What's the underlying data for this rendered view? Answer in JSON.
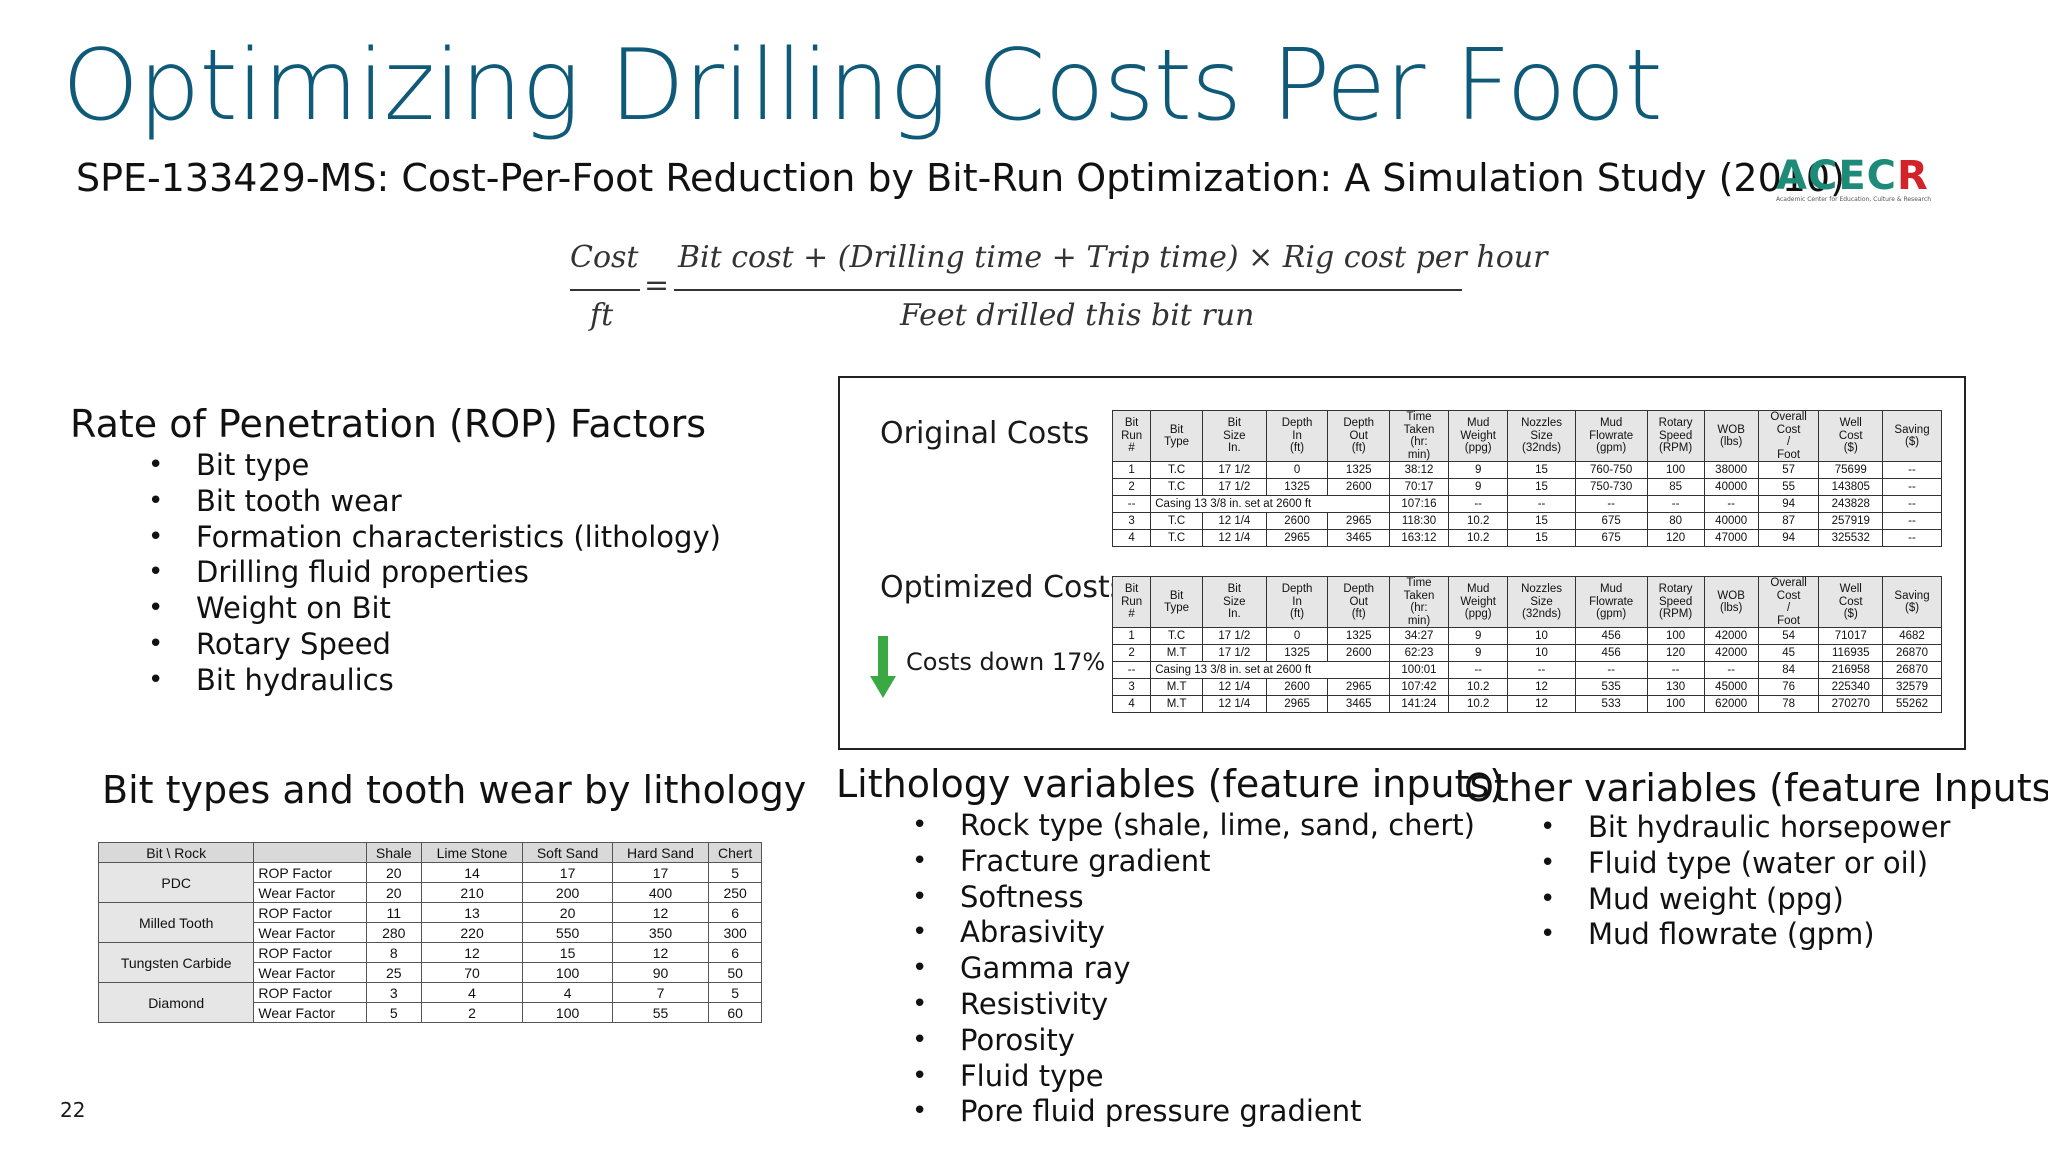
{
  "title": "Optimizing Drilling Costs Per Foot",
  "subtitle": "SPE-133429-MS: Cost-Per-Foot Reduction by Bit-Run Optimization: A Simulation Study (2010)",
  "logo": {
    "text_a": "ACEC",
    "text_b": "R",
    "tagline": "Academic Center for Education, Culture & Research"
  },
  "formula": {
    "lhs_numerator": "Cost",
    "lhs_denominator": "ft",
    "equals": "=",
    "rhs_numerator": "Bit cost + (Drilling time + Trip time) × Rig cost per hour",
    "rhs_denominator": "Feet drilled this bit run"
  },
  "rop": {
    "heading": "Rate of Penetration (ROP) Factors",
    "items": [
      "Bit type",
      "Bit tooth wear",
      "Formation characteristics (lithology)",
      "Drilling fluid properties",
      "Weight on Bit",
      "Rotary Speed",
      "Bit hydraulics"
    ]
  },
  "cost_panel": {
    "original_label": "Original Costs",
    "optimized_label": "Optimized Costs",
    "costs_down": "Costs down 17%",
    "headers": [
      "Bit Run #",
      "Bit Type",
      "Bit Size In.",
      "Depth In (ft)",
      "Depth Out (ft)",
      "Time Taken (hr: min)",
      "Mud Weight (ppg)",
      "Nozzles Size (32nds)",
      "Mud Flowrate (gpm)",
      "Rotary Speed (RPM)",
      "WOB (lbs)",
      "Overall Cost / Foot",
      "Well Cost ($)",
      "Saving ($)"
    ],
    "original": {
      "rows": [
        [
          "1",
          "T.C",
          "17 1/2",
          "0",
          "1325",
          "38:12",
          "9",
          "15",
          "760-750",
          "100",
          "38000",
          "57",
          "75699",
          "--"
        ],
        [
          "2",
          "T.C",
          "17 1/2",
          "1325",
          "2600",
          "70:17",
          "9",
          "15",
          "750-730",
          "85",
          "40000",
          "55",
          "143805",
          "--"
        ]
      ],
      "casing": {
        "run": "--",
        "note": "Casing 13 3/8 in. set at 2600 ft",
        "time": "107:16",
        "dash": "--",
        "cost": "94",
        "well": "243828",
        "saving": "--"
      },
      "rows2": [
        [
          "3",
          "T.C",
          "12 1/4",
          "2600",
          "2965",
          "118:30",
          "10.2",
          "15",
          "675",
          "80",
          "40000",
          "87",
          "257919",
          "--"
        ],
        [
          "4",
          "T.C",
          "12 1/4",
          "2965",
          "3465",
          "163:12",
          "10.2",
          "15",
          "675",
          "120",
          "47000",
          "94",
          "325532",
          "--"
        ]
      ]
    },
    "optimized": {
      "rows": [
        [
          "1",
          "T.C",
          "17 1/2",
          "0",
          "1325",
          "34:27",
          "9",
          "10",
          "456",
          "100",
          "42000",
          "54",
          "71017",
          "4682"
        ],
        [
          "2",
          "M.T",
          "17 1/2",
          "1325",
          "2600",
          "62:23",
          "9",
          "10",
          "456",
          "120",
          "42000",
          "45",
          "116935",
          "26870"
        ]
      ],
      "casing": {
        "run": "--",
        "note": "Casing 13 3/8 in. set at 2600 ft",
        "time": "100:01",
        "dash": "--",
        "cost": "84",
        "well": "216958",
        "saving": "26870"
      },
      "rows2": [
        [
          "3",
          "M.T",
          "12 1/4",
          "2600",
          "2965",
          "107:42",
          "10.2",
          "12",
          "535",
          "130",
          "45000",
          "76",
          "225340",
          "32579"
        ],
        [
          "4",
          "M.T",
          "12 1/4",
          "2965",
          "3465",
          "141:24",
          "10.2",
          "12",
          "533",
          "100",
          "62000",
          "78",
          "270270",
          "55262"
        ]
      ]
    }
  },
  "lithology_table": {
    "heading": "Bit types and tooth wear by lithology",
    "headers": [
      "Bit \\ Rock",
      "",
      "Shale",
      "Lime Stone",
      "Soft Sand",
      "Hard Sand",
      "Chert"
    ],
    "groups": [
      {
        "bit": "PDC",
        "rows": [
          [
            "ROP Factor",
            "20",
            "14",
            "17",
            "17",
            "5"
          ],
          [
            "Wear Factor",
            "20",
            "210",
            "200",
            "400",
            "250"
          ]
        ]
      },
      {
        "bit": "Milled Tooth",
        "rows": [
          [
            "ROP Factor",
            "11",
            "13",
            "20",
            "12",
            "6"
          ],
          [
            "Wear Factor",
            "280",
            "220",
            "550",
            "350",
            "300"
          ]
        ]
      },
      {
        "bit": "Tungsten Carbide",
        "rows": [
          [
            "ROP Factor",
            "8",
            "12",
            "15",
            "12",
            "6"
          ],
          [
            "Wear Factor",
            "25",
            "70",
            "100",
            "90",
            "50"
          ]
        ]
      },
      {
        "bit": "Diamond",
        "rows": [
          [
            "ROP Factor",
            "3",
            "4",
            "4",
            "7",
            "5"
          ],
          [
            "Wear Factor",
            "5",
            "2",
            "100",
            "55",
            "60"
          ]
        ]
      }
    ]
  },
  "lithology_vars": {
    "heading": "Lithology variables (feature inputs)",
    "items": [
      "Rock type (shale, lime, sand, chert)",
      "Fracture gradient",
      "Softness",
      "Abrasivity",
      "Gamma ray",
      "Resistivity",
      "Porosity",
      "Fluid type",
      "Pore fluid pressure gradient"
    ]
  },
  "other_vars": {
    "heading": "Other variables (feature Inputs)",
    "items": [
      "Bit hydraulic horsepower",
      "Fluid type (water or oil)",
      "Mud weight (ppg)",
      "Mud flowrate (gpm)"
    ]
  },
  "page_number": "22",
  "colors": {
    "title": "#0e5a78",
    "logo_green": "#1d8b78",
    "logo_red": "#d2232a",
    "arrow_green": "#3aa843"
  }
}
